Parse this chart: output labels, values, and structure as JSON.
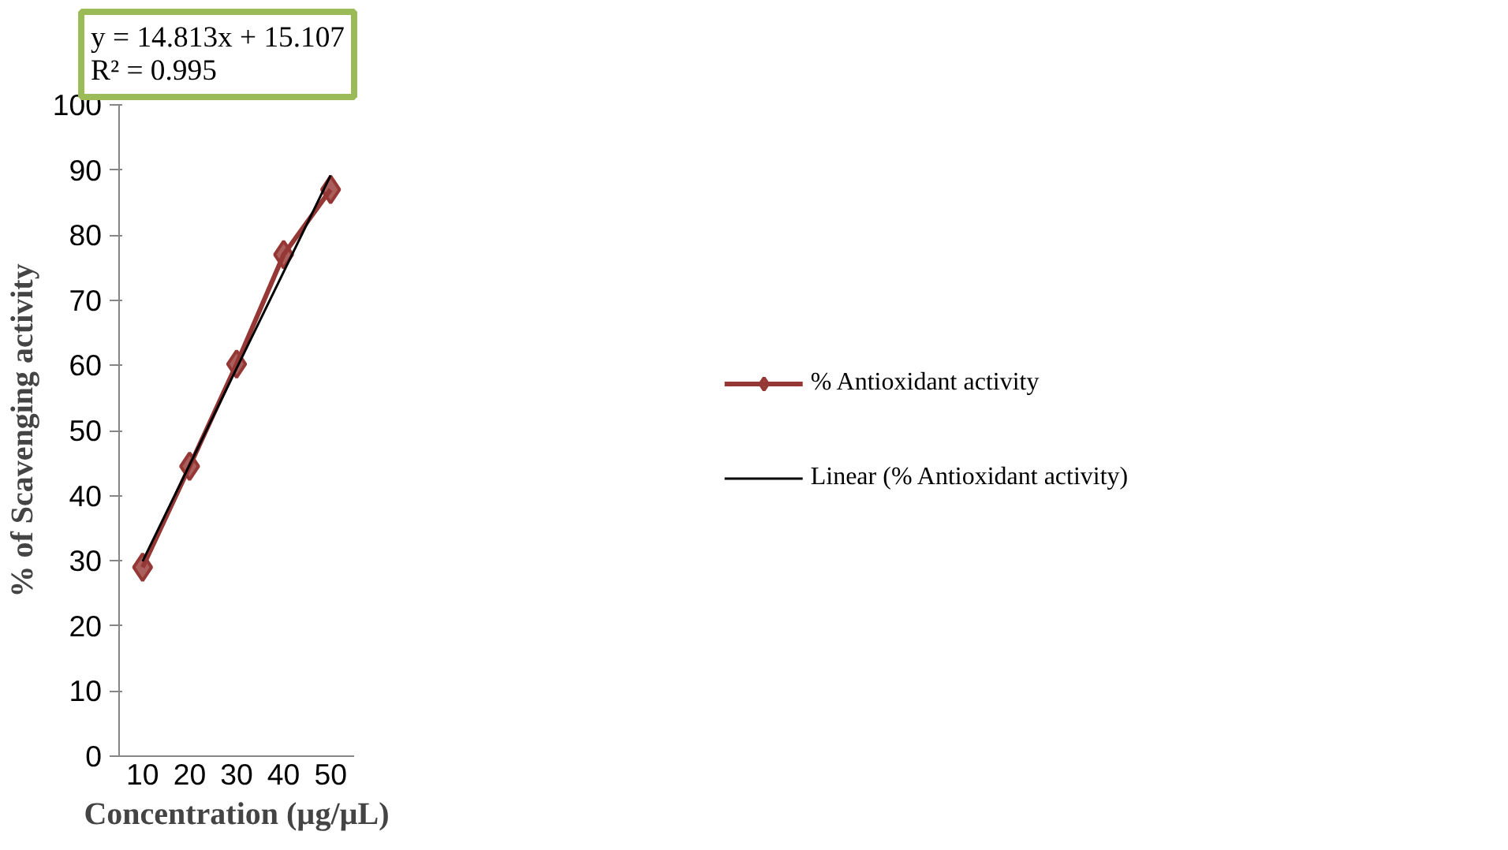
{
  "chart_data": {
    "type": "line",
    "xlabel": "Concentration (µg/µL)",
    "ylabel": "% of Scavenging activity",
    "categories": [
      "10",
      "20",
      "30",
      "40",
      "50"
    ],
    "series": [
      {
        "name": "% Antioxidant activity",
        "color": "#953735",
        "values": [
          29,
          44.5,
          60.2,
          77,
          87
        ],
        "marker": "diamond"
      },
      {
        "name": "Linear (% Antioxidant activity)",
        "color": "#000000",
        "values": [
          29.92,
          44.73,
          59.55,
          74.36,
          89.17
        ],
        "marker": "none"
      }
    ],
    "ylim": [
      0,
      100
    ],
    "yticks": [
      0,
      10,
      20,
      30,
      40,
      50,
      60,
      70,
      80,
      90,
      100
    ],
    "grid": false,
    "legend": "right",
    "line_style": "solid",
    "annotations": [
      "y = 14.813x + 15.107",
      "R² = 0.995"
    ]
  }
}
